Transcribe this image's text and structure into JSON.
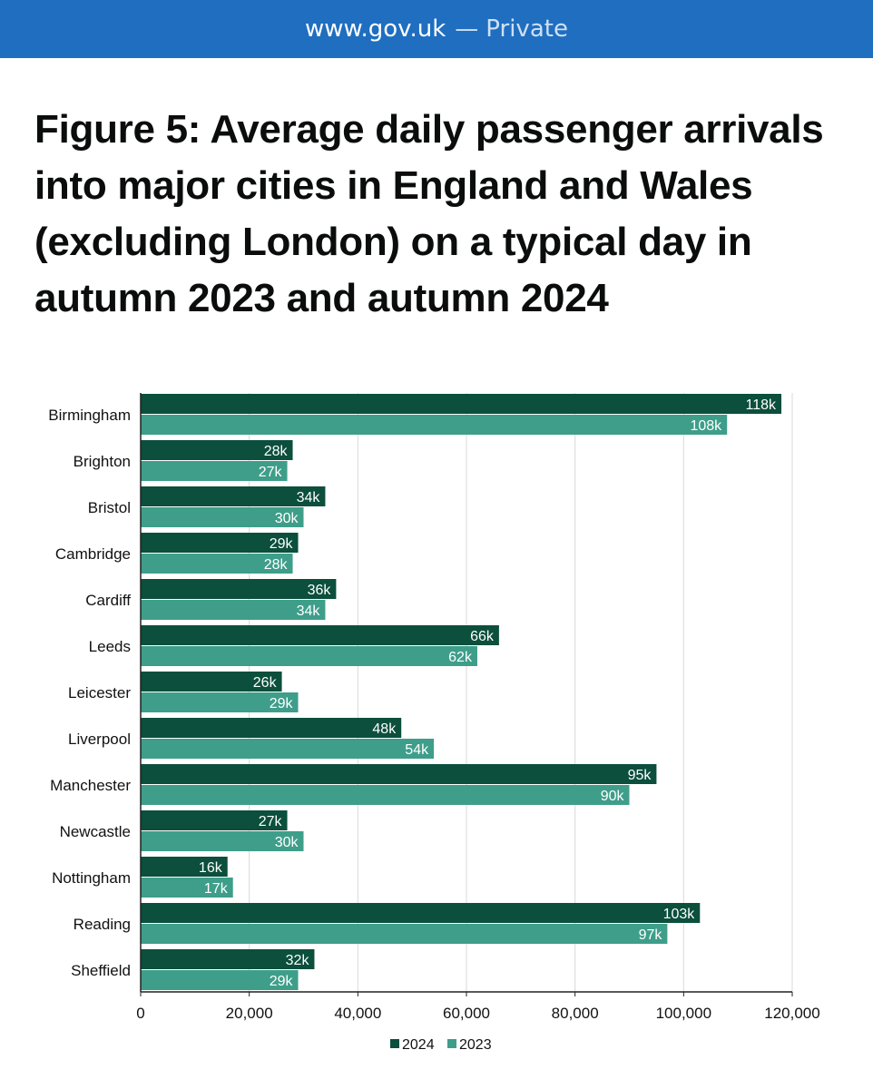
{
  "browser": {
    "domain": "www.gov.uk",
    "separator": "—",
    "mode": "Private"
  },
  "title": "Figure 5: Average daily passenger arrivals into major cities in England and Wales (excluding London) on a typical day in autumn 2023 and autumn 2024",
  "colors": {
    "urlbar": "#1f6ec0",
    "series_2024": "#0b4f3c",
    "series_2023": "#3e9e8a",
    "grid": "#d9d9d9"
  },
  "chart_data": {
    "type": "bar",
    "orientation": "horizontal",
    "categories": [
      "Birmingham",
      "Brighton",
      "Bristol",
      "Cambridge",
      "Cardiff",
      "Leeds",
      "Leicester",
      "Liverpool",
      "Manchester",
      "Newcastle",
      "Nottingham",
      "Reading",
      "Sheffield"
    ],
    "series": [
      {
        "name": "2024",
        "values": [
          118000,
          28000,
          34000,
          29000,
          36000,
          66000,
          26000,
          48000,
          95000,
          27000,
          16000,
          103000,
          32000
        ],
        "labels": [
          "118k",
          "28k",
          "34k",
          "29k",
          "36k",
          "66k",
          "26k",
          "48k",
          "95k",
          "27k",
          "16k",
          "103k",
          "32k"
        ]
      },
      {
        "name": "2023",
        "values": [
          108000,
          27000,
          30000,
          28000,
          34000,
          62000,
          29000,
          54000,
          90000,
          30000,
          17000,
          97000,
          29000
        ],
        "labels": [
          "108k",
          "27k",
          "30k",
          "28k",
          "34k",
          "62k",
          "29k",
          "54k",
          "90k",
          "30k",
          "17k",
          "97k",
          "29k"
        ]
      }
    ],
    "xlim": [
      0,
      120000
    ],
    "x_ticks": [
      0,
      20000,
      40000,
      60000,
      80000,
      100000,
      120000
    ],
    "x_tick_labels": [
      "0",
      "20,000",
      "40,000",
      "60,000",
      "80,000",
      "100,000",
      "120,000"
    ],
    "grid": true,
    "legend_position": "bottom"
  }
}
